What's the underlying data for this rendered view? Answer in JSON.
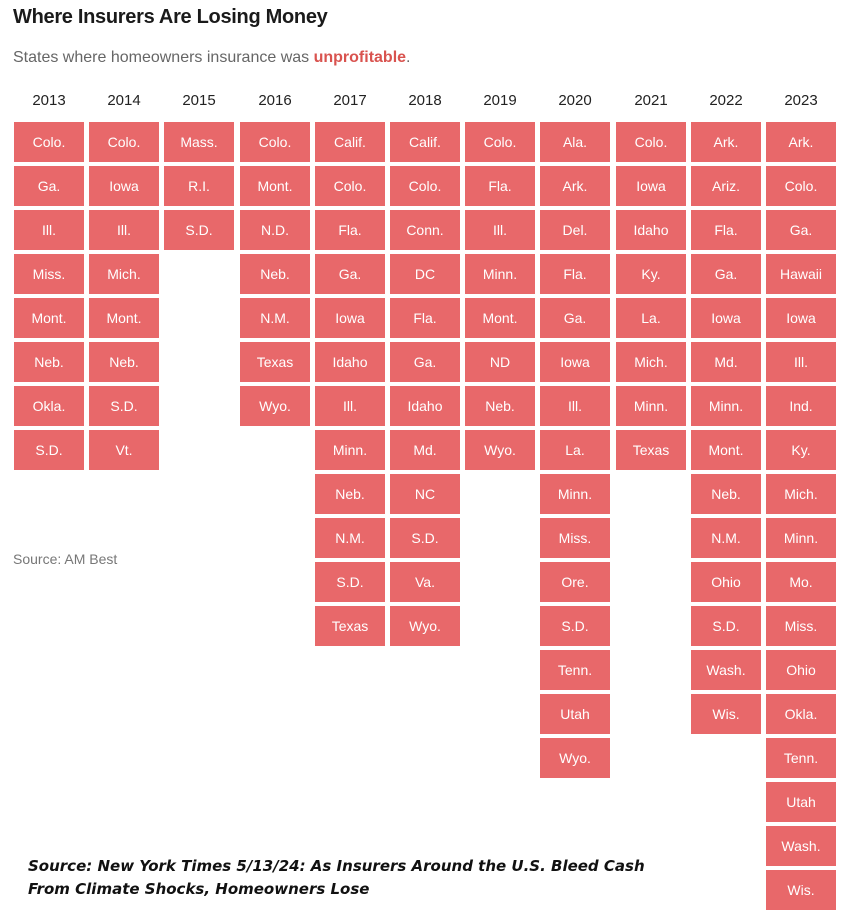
{
  "title": "Where Insurers Are Losing Money",
  "subtitle": {
    "prefix": "States where homeowners insurance was ",
    "highlight": "unprofitable",
    "suffix": "."
  },
  "source_chart": "Source: AM Best",
  "source_article": "Source: New York Times 5/13/24: As Insurers Around the U.S. Bleed Cash From Climate Shocks, Homeowners Lose",
  "colors": {
    "cell": "#e8686a",
    "highlight": "#d9534f"
  },
  "chart_data": {
    "type": "table",
    "columns": [
      {
        "year": "2013",
        "states": [
          "Colo.",
          "Ga.",
          "Ill.",
          "Miss.",
          "Mont.",
          "Neb.",
          "Okla.",
          "S.D."
        ]
      },
      {
        "year": "2014",
        "states": [
          "Colo.",
          "Iowa",
          "Ill.",
          "Mich.",
          "Mont.",
          "Neb.",
          "S.D.",
          "Vt."
        ]
      },
      {
        "year": "2015",
        "states": [
          "Mass.",
          "R.I.",
          "S.D."
        ]
      },
      {
        "year": "2016",
        "states": [
          "Colo.",
          "Mont.",
          "N.D.",
          "Neb.",
          "N.M.",
          "Texas",
          "Wyo."
        ]
      },
      {
        "year": "2017",
        "states": [
          "Calif.",
          "Colo.",
          "Fla.",
          "Ga.",
          "Iowa",
          "Idaho",
          "Ill.",
          "Minn.",
          "Neb.",
          "N.M.",
          "S.D.",
          "Texas"
        ]
      },
      {
        "year": "2018",
        "states": [
          "Calif.",
          "Colo.",
          "Conn.",
          "DC",
          "Fla.",
          "Ga.",
          "Idaho",
          "Md.",
          "NC",
          "S.D.",
          "Va.",
          "Wyo."
        ]
      },
      {
        "year": "2019",
        "states": [
          "Colo.",
          "Fla.",
          "Ill.",
          "Minn.",
          "Mont.",
          "ND",
          "Neb.",
          "Wyo."
        ]
      },
      {
        "year": "2020",
        "states": [
          "Ala.",
          "Ark.",
          "Del.",
          "Fla.",
          "Ga.",
          "Iowa",
          "Ill.",
          "La.",
          "Minn.",
          "Miss.",
          "Ore.",
          "S.D.",
          "Tenn.",
          "Utah",
          "Wyo."
        ]
      },
      {
        "year": "2021",
        "states": [
          "Colo.",
          "Iowa",
          "Idaho",
          "Ky.",
          "La.",
          "Mich.",
          "Minn.",
          "Texas"
        ]
      },
      {
        "year": "2022",
        "states": [
          "Ark.",
          "Ariz.",
          "Fla.",
          "Ga.",
          "Iowa",
          "Md.",
          "Minn.",
          "Mont.",
          "Neb.",
          "N.M.",
          "Ohio",
          "S.D.",
          "Wash.",
          "Wis."
        ]
      },
      {
        "year": "2023",
        "states": [
          "Ark.",
          "Colo.",
          "Ga.",
          "Hawaii",
          "Iowa",
          "Ill.",
          "Ind.",
          "Ky.",
          "Mich.",
          "Minn.",
          "Mo.",
          "Miss.",
          "Ohio",
          "Okla.",
          "Tenn.",
          "Utah",
          "Wash.",
          "Wis."
        ]
      }
    ]
  }
}
